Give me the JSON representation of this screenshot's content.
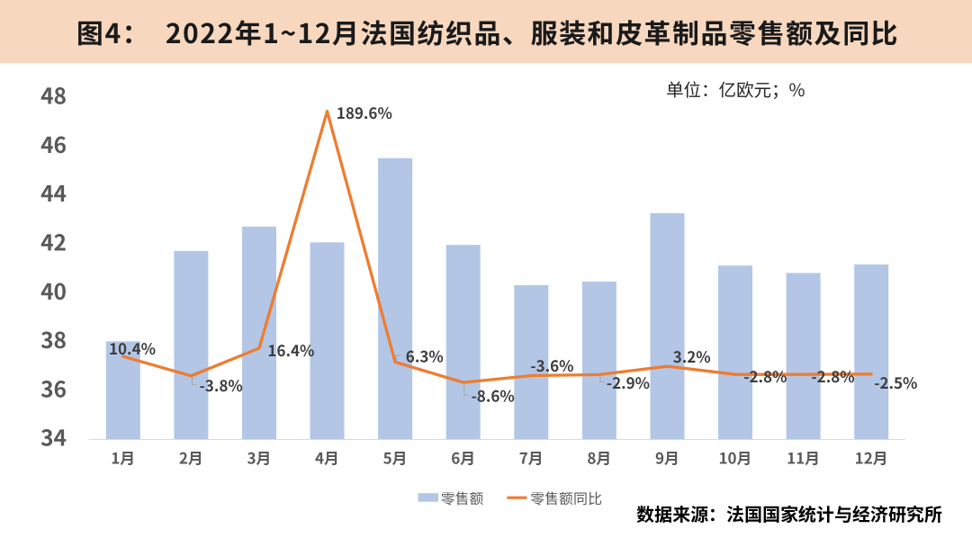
{
  "header": {
    "title": "图4：  2022年1~12月法国纺织品、服装和皮革制品零售额及同比"
  },
  "unit_note": {
    "text": "单位：亿欧元；",
    "pct": "%"
  },
  "source_note": "数据来源：法国国家统计与经济研究所",
  "colors": {
    "header_bg": "#F7D8BF",
    "bar": "#B3C6E6",
    "line": "#ED7D31",
    "axis_text": "#595959",
    "data_label_text": "#3D3D3D",
    "axis_line": "#D9D9D9",
    "leader_line": "#A6A6A6",
    "title_text": "#1A1A1A",
    "background": "#FFFFFF"
  },
  "chart_data": {
    "type": "bar",
    "title": "2022年1~12月法国纺织品、服装和皮革制品零售额及同比",
    "categories": [
      "1月",
      "2月",
      "3月",
      "4月",
      "5月",
      "6月",
      "7月",
      "8月",
      "9月",
      "10月",
      "11月",
      "12月"
    ],
    "series": [
      {
        "name": "零售额",
        "type": "bar",
        "axis": "primary",
        "unit": "亿欧元",
        "values": [
          38.0,
          41.7,
          42.7,
          42.05,
          45.5,
          41.95,
          40.3,
          40.45,
          43.25,
          41.1,
          40.8,
          41.15
        ]
      },
      {
        "name": "零售额同比",
        "type": "line",
        "axis": "secondary",
        "unit": "%",
        "values": [
          10.4,
          -3.8,
          16.4,
          189.6,
          6.3,
          -8.6,
          -3.6,
          -2.9,
          3.2,
          -2.8,
          -2.8,
          -2.5
        ],
        "labels": [
          "10.4%",
          "-3.8%",
          "16.4%",
          "189.6%",
          "6.3%",
          "-8.6%",
          "-3.6%",
          "-2.9%",
          "3.2%",
          "-2.8%",
          "-2.8%",
          "-2.5%"
        ]
      }
    ],
    "ylim": [
      34,
      48
    ],
    "y_ticks": [
      34,
      36,
      38,
      40,
      42,
      44,
      46,
      48
    ],
    "y2lim": [
      -50,
      200
    ],
    "grid": false,
    "legend_position": "bottom",
    "label_placement": [
      {
        "dx": -15.8,
        "dy": -9.9,
        "leader": false
      },
      {
        "dx": 9.1,
        "dy": 9.6,
        "leader": true
      },
      {
        "dx": 9.4,
        "dy": 1.6,
        "leader": false
      },
      {
        "dx": 10.3,
        "dy": 0.9,
        "leader": false
      },
      {
        "dx": 11.7,
        "dy": -7.2,
        "leader": true
      },
      {
        "dx": 8.8,
        "dy": 14.0,
        "leader": true
      },
      {
        "dx": -1.0,
        "dy": -11.9,
        "leader": false
      },
      {
        "dx": 7.9,
        "dy": 8.0,
        "leader": true
      },
      {
        "dx": 6.2,
        "dy": -11.5,
        "leader": false
      },
      {
        "dx": 9.2,
        "dy": 1.5,
        "leader": false
      },
      {
        "dx": 8.8,
        "dy": 1.5,
        "leader": false
      },
      {
        "dx": 3.0,
        "dy": 8.8,
        "leader": false
      }
    ]
  }
}
